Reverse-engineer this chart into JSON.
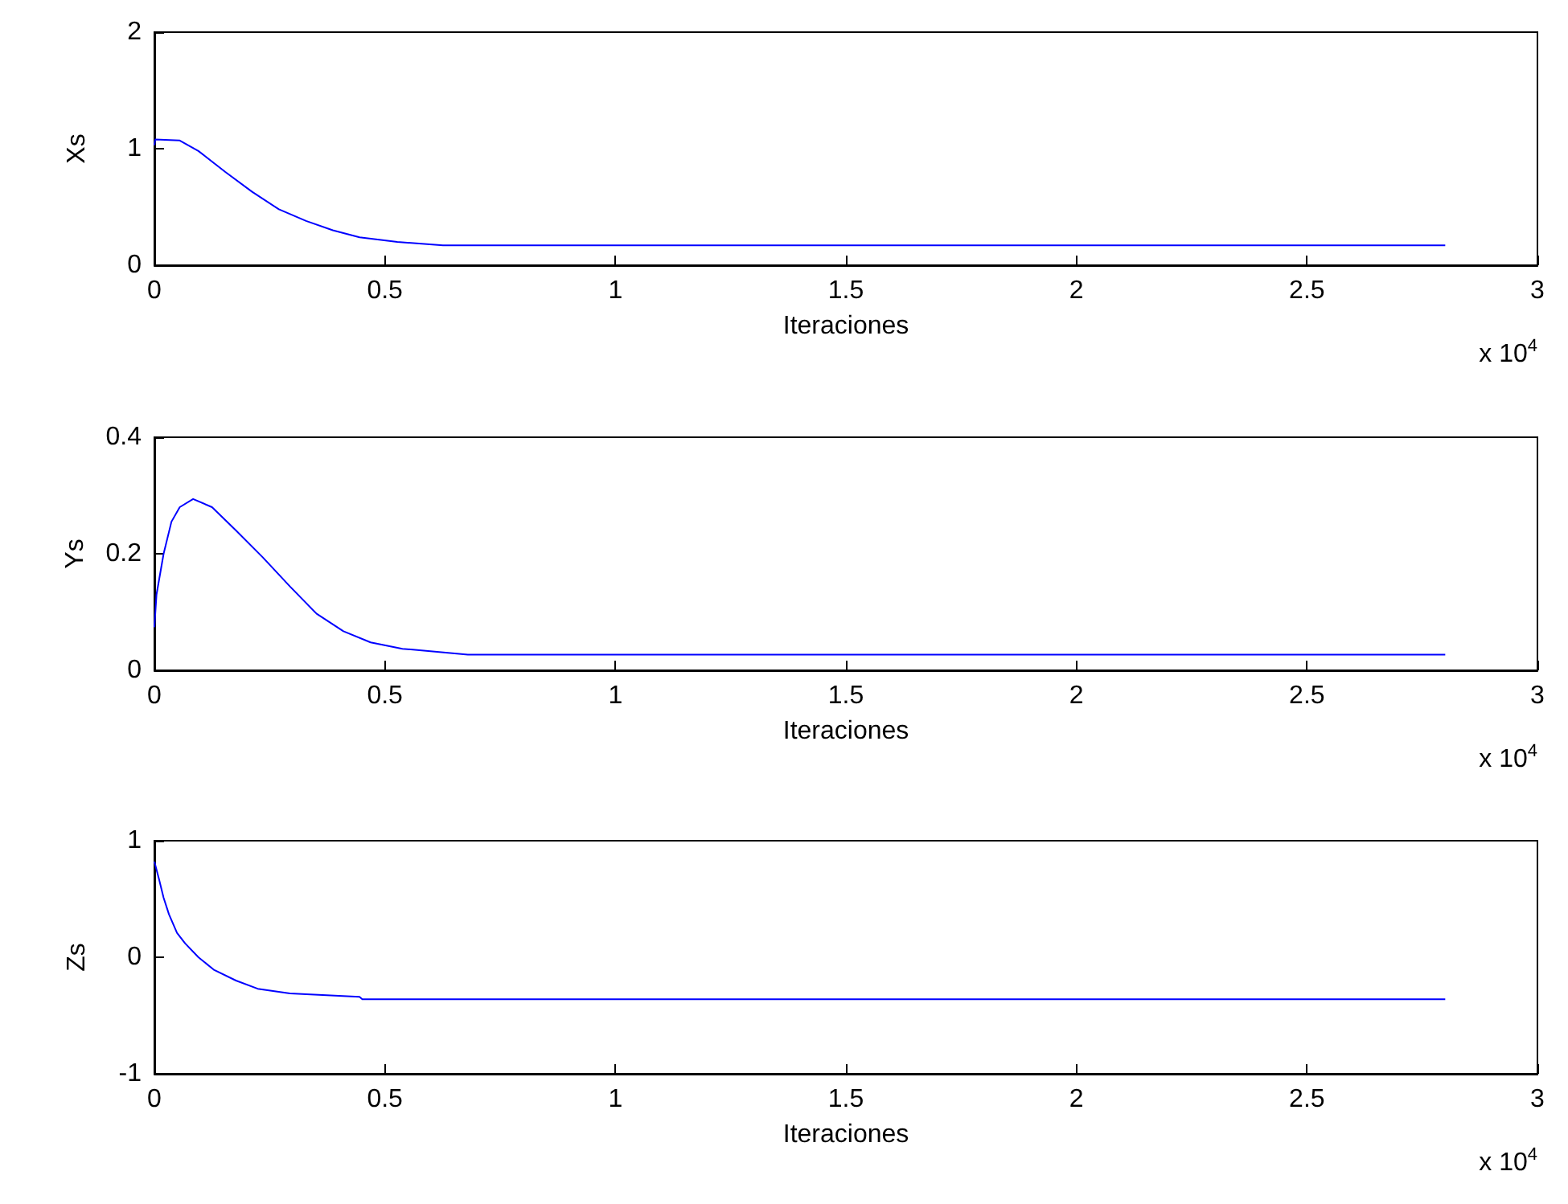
{
  "chart_data": [
    {
      "type": "line",
      "xlabel": "Iteraciones",
      "ylabel": "Xs",
      "annotations": [
        "x 10$^{4}$"
      ],
      "x": [
        0,
        0.002,
        0.055,
        0.0955,
        0.154,
        0.212,
        0.27,
        0.329,
        0.387,
        0.445,
        0.527,
        0.626,
        2.8
      ],
      "series": [
        {
          "color": "#0000ff",
          "values": [
            1.03,
            1.08,
            1.07,
            0.98,
            0.8,
            0.63,
            0.48,
            0.38,
            0.3,
            0.24,
            0.2,
            0.17,
            0.17
          ]
        }
      ],
      "xlim": [
        0,
        3
      ],
      "xticks": [
        0,
        0.5,
        1,
        1.5,
        2,
        2.5,
        3
      ],
      "ylim": [
        0,
        2
      ],
      "yticks": [
        0,
        1,
        2
      ]
    },
    {
      "type": "line",
      "xlabel": "Iteraciones",
      "ylabel": "Ys",
      "annotations": [
        "x 10$^{4}$"
      ],
      "x": [
        0,
        0.0046,
        0.02,
        0.037,
        0.055,
        0.084,
        0.125,
        0.177,
        0.235,
        0.294,
        0.352,
        0.41,
        0.469,
        0.538,
        0.68,
        2.8
      ],
      "series": [
        {
          "color": "#0000ff",
          "values": [
            0.074,
            0.13,
            0.2,
            0.255,
            0.28,
            0.294,
            0.28,
            0.24,
            0.194,
            0.144,
            0.097,
            0.067,
            0.048,
            0.037,
            0.027,
            0.027
          ]
        }
      ],
      "xlim": [
        0,
        3
      ],
      "xticks": [
        0,
        0.5,
        1,
        1.5,
        2,
        2.5,
        3
      ],
      "ylim": [
        0,
        0.4
      ],
      "yticks": [
        0,
        0.2,
        0.4
      ]
    },
    {
      "type": "line",
      "xlabel": "Iteraciones",
      "ylabel": "Zs",
      "annotations": [
        "x 10$^{4}$"
      ],
      "x": [
        0,
        0.01,
        0.02,
        0.0315,
        0.049,
        0.0665,
        0.0955,
        0.13,
        0.177,
        0.224,
        0.294,
        0.445,
        0.451,
        2.8
      ],
      "series": [
        {
          "color": "#0000ff",
          "values": [
            0.82,
            0.67,
            0.51,
            0.37,
            0.21,
            0.12,
            0,
            -0.11,
            -0.2,
            -0.27,
            -0.31,
            -0.34,
            -0.36,
            -0.36
          ]
        }
      ],
      "xlim": [
        0,
        3
      ],
      "xticks": [
        0,
        0.5,
        1,
        1.5,
        2,
        2.5,
        3
      ],
      "ylim": [
        -1,
        1
      ],
      "yticks": [
        -1,
        0,
        1
      ]
    }
  ]
}
